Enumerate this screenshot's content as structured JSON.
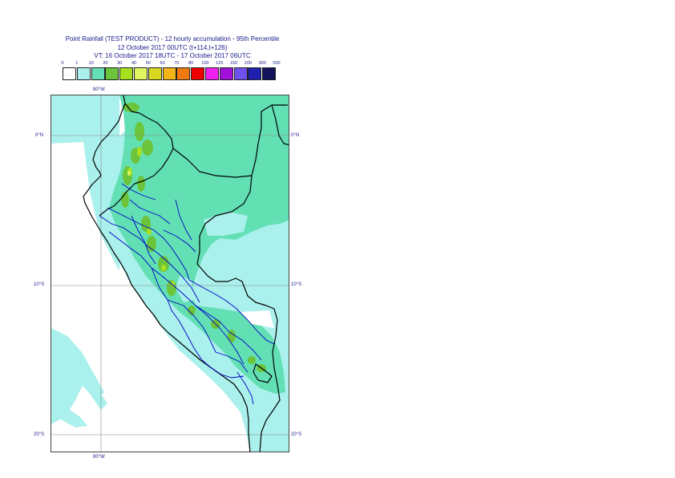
{
  "title": {
    "line1": "Point Rainfall (TEST PRODUCT) - 12 hourly accumulation - 95th Percentile",
    "line2": "12 October 2017 00UTC (t+114,t+126)",
    "line3": "VT: 16 October 2017 18UTC - 17 October 2017 06UTC"
  },
  "legend": {
    "labels": [
      "0",
      "1",
      "10",
      "20",
      "30",
      "40",
      "50",
      "60",
      "70",
      "80",
      "100",
      "125",
      "150",
      "200",
      "300",
      "500"
    ],
    "colors": [
      "#ffffff",
      "#aaf0ec",
      "#62e0b4",
      "#6cc43a",
      "#a6e01e",
      "#e0f560",
      "#d8d820",
      "#f2b418",
      "#f07a10",
      "#ee0000",
      "#f020f0",
      "#a010d8",
      "#7050ee",
      "#2020b0",
      "#12125a"
    ]
  },
  "axes": {
    "lon_top": "80°W",
    "lon_bottom": "80°W",
    "lat": [
      {
        "left": "0°N",
        "right": "0°N"
      },
      {
        "left": "10°S",
        "right": "10°S"
      },
      {
        "left": "20°S",
        "right": "20°S"
      }
    ]
  },
  "colors": {
    "sea": "#aaf0ec",
    "land_rain": "#62e0b4",
    "heavy": "#6cc43a",
    "very_heavy": "#a6e01e",
    "border_country": "#000000",
    "border_region": "#0000c8",
    "grid": "#888888"
  }
}
